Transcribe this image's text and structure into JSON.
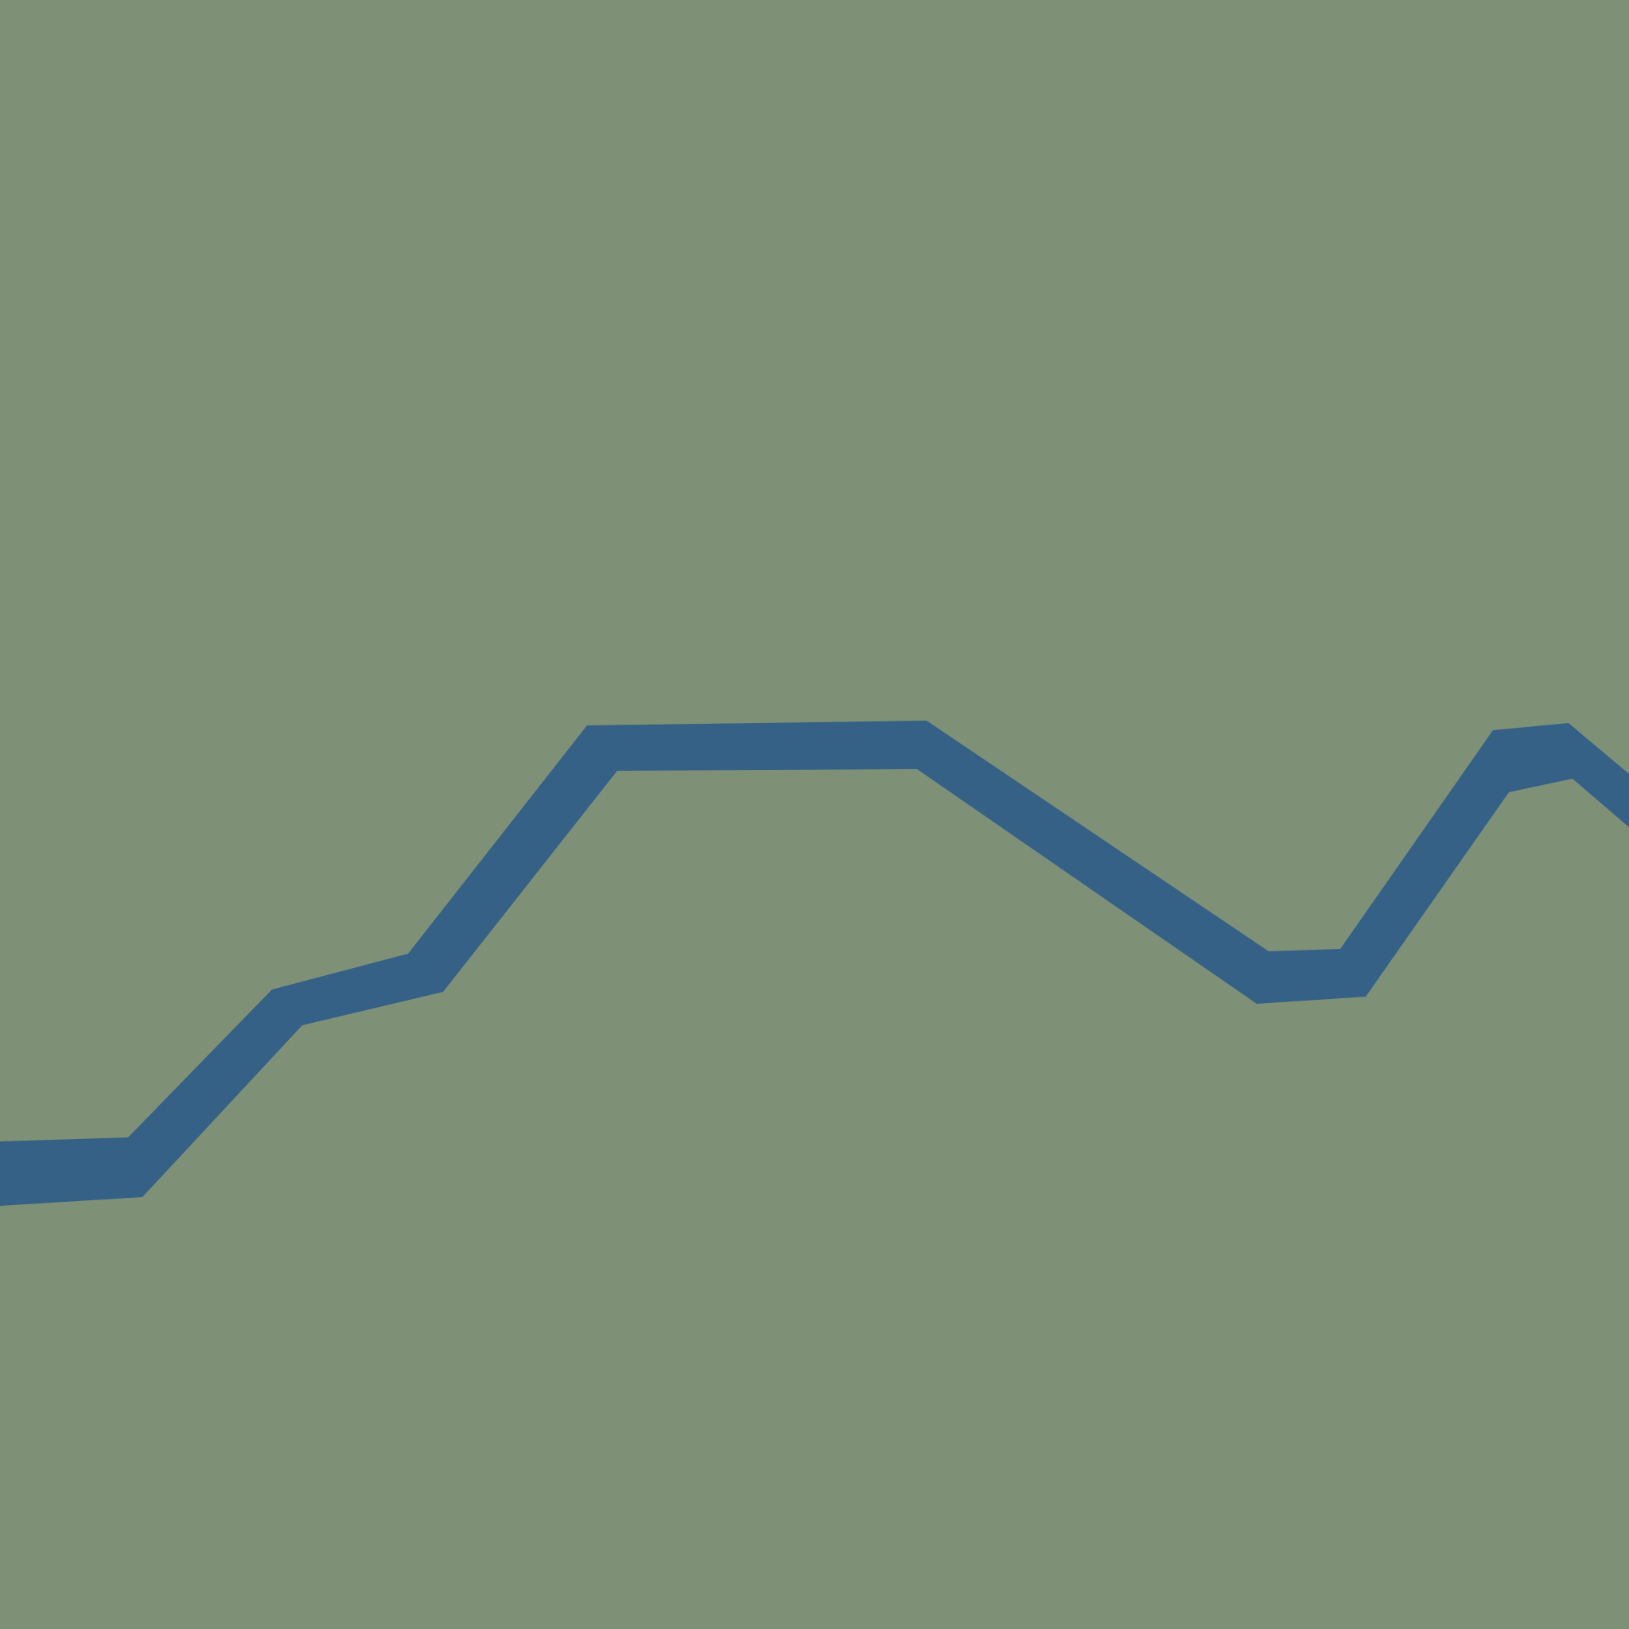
{
  "graphic": {
    "background_color": "#7e9176",
    "band_color": "#356187",
    "shape": "thick zigzag band rising from left, plateauing, dipping, then rising again toward the right"
  }
}
